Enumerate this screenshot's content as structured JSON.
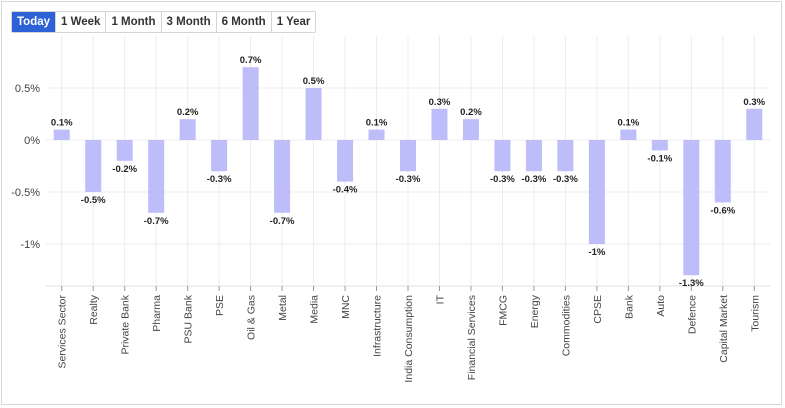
{
  "time_tabs": [
    {
      "label": "Today",
      "active": true
    },
    {
      "label": "1 Week",
      "active": false
    },
    {
      "label": "1 Month",
      "active": false
    },
    {
      "label": "3 Month",
      "active": false
    },
    {
      "label": "6 Month",
      "active": false
    },
    {
      "label": "1 Year",
      "active": false
    }
  ],
  "colors": {
    "bar": "#bdbdf9",
    "accent": "#2d61d8",
    "grid": "#ececec"
  },
  "chart_data": {
    "type": "bar",
    "title": "",
    "xlabel": "",
    "ylabel": "",
    "grid": true,
    "ylim": [
      -1.45,
      0.75
    ],
    "yticks": [
      0.5,
      0,
      -0.5,
      -1
    ],
    "ytick_labels": [
      "0.5%",
      "0%",
      "-0.5%",
      "-1%"
    ],
    "categories": [
      "Services Sector",
      "Realty",
      "Private Bank",
      "Pharma",
      "PSU Bank",
      "PSE",
      "Oil & Gas",
      "Metal",
      "Media",
      "MNC",
      "Infrastructure",
      "India Consumption",
      "IT",
      "Financial Services",
      "FMCG",
      "Energy",
      "Commodities",
      "CPSE",
      "Bank",
      "Auto",
      "Defence",
      "Capital Market",
      "Tourism"
    ],
    "values": [
      0.1,
      -0.5,
      -0.2,
      -0.7,
      0.2,
      -0.3,
      0.7,
      -0.7,
      0.5,
      -0.4,
      0.1,
      -0.3,
      0.3,
      0.2,
      -0.3,
      -0.3,
      -0.3,
      -1.0,
      0.1,
      -0.1,
      -1.3,
      -0.6,
      0.3
    ],
    "value_labels": [
      "0.1%",
      "-0.5%",
      "-0.2%",
      "-0.7%",
      "0.2%",
      "-0.3%",
      "0.7%",
      "-0.7%",
      "0.5%",
      "-0.4%",
      "0.1%",
      "-0.3%",
      "0.3%",
      "0.2%",
      "-0.3%",
      "-0.3%",
      "-0.3%",
      "-1%",
      "0.1%",
      "-0.1%",
      "-1.3%",
      "-0.6%",
      "0.3%"
    ]
  }
}
